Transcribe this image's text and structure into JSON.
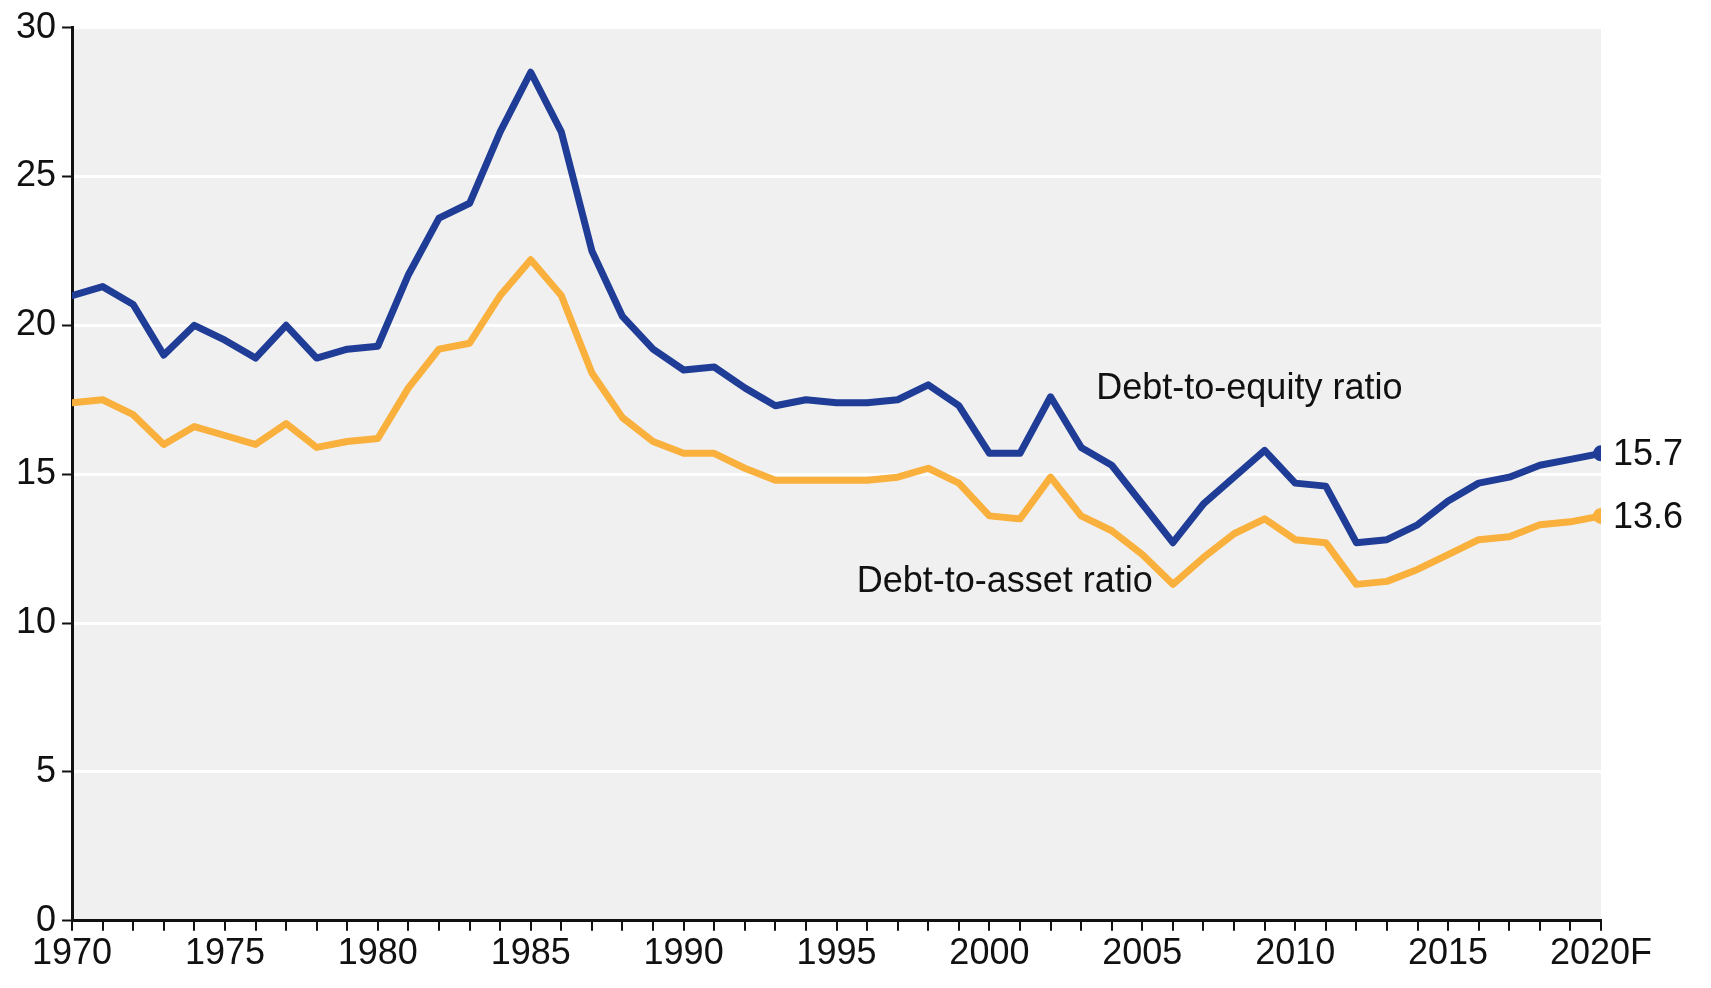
{
  "chart_data": {
    "type": "line",
    "x": [
      1970,
      1971,
      1972,
      1973,
      1974,
      1975,
      1976,
      1977,
      1978,
      1979,
      1980,
      1981,
      1982,
      1983,
      1984,
      1985,
      1986,
      1987,
      1988,
      1989,
      1990,
      1991,
      1992,
      1993,
      1994,
      1995,
      1996,
      1997,
      1998,
      1999,
      2000,
      2001,
      2002,
      2003,
      2004,
      2005,
      2006,
      2007,
      2008,
      2009,
      2010,
      2011,
      2012,
      2013,
      2014,
      2015,
      2016,
      2017,
      2018,
      2019,
      2020
    ],
    "series": [
      {
        "name": "Debt-to-equity ratio",
        "color": "#1f3c96",
        "values": [
          21.0,
          21.3,
          20.7,
          19.0,
          20.0,
          19.5,
          18.9,
          20.0,
          18.9,
          19.2,
          19.3,
          21.7,
          23.6,
          24.1,
          26.5,
          28.5,
          26.5,
          22.5,
          20.3,
          19.2,
          18.5,
          18.6,
          17.9,
          17.3,
          17.5,
          17.4,
          17.4,
          17.5,
          18.0,
          17.3,
          15.7,
          15.7,
          17.6,
          15.9,
          15.3,
          14.0,
          12.7,
          14.0,
          14.9,
          15.8,
          14.7,
          14.6,
          12.7,
          12.8,
          13.3,
          14.1,
          14.7,
          14.9,
          15.3,
          15.5,
          15.7
        ],
        "value_labels": [
          null,
          null,
          null,
          null,
          null,
          null,
          null,
          null,
          null,
          null,
          null,
          null,
          null,
          null,
          null,
          null,
          null,
          null,
          null,
          null,
          null,
          null,
          null,
          null,
          null,
          null,
          null,
          null,
          null,
          null,
          null,
          null,
          null,
          null,
          null,
          null,
          null,
          null,
          null,
          null,
          null,
          null,
          null,
          null,
          null,
          null,
          null,
          null,
          null,
          null,
          "15.7"
        ]
      },
      {
        "name": "Debt-to-asset ratio",
        "color": "#f9b03c",
        "values": [
          17.4,
          17.5,
          17.0,
          16.0,
          16.6,
          16.3,
          16.0,
          16.7,
          15.9,
          16.1,
          16.2,
          17.9,
          19.2,
          19.4,
          21.0,
          22.2,
          21.0,
          18.4,
          16.9,
          16.1,
          15.7,
          15.7,
          15.2,
          14.8,
          14.8,
          14.8,
          14.8,
          14.9,
          15.2,
          14.7,
          13.6,
          13.5,
          14.9,
          13.6,
          13.1,
          12.3,
          11.3,
          12.2,
          13.0,
          13.5,
          12.8,
          12.7,
          11.3,
          11.4,
          11.8,
          12.3,
          12.8,
          12.9,
          13.3,
          13.4,
          13.6
        ],
        "value_labels": [
          null,
          null,
          null,
          null,
          null,
          null,
          null,
          null,
          null,
          null,
          null,
          null,
          null,
          null,
          null,
          null,
          null,
          null,
          null,
          null,
          null,
          null,
          null,
          null,
          null,
          null,
          null,
          null,
          null,
          null,
          null,
          null,
          null,
          null,
          null,
          null,
          null,
          null,
          null,
          null,
          null,
          null,
          null,
          null,
          null,
          null,
          null,
          null,
          null,
          null,
          "13.6"
        ]
      }
    ],
    "xlim": [
      1970,
      2020
    ],
    "xticks": [
      1970,
      {
        "value": 1971,
        "label": null
      },
      {
        "value": 1972,
        "label": null
      },
      {
        "value": 1973,
        "label": null
      },
      {
        "value": 1974,
        "label": null
      },
      1975,
      {
        "value": 1976,
        "label": null
      },
      {
        "value": 1977,
        "label": null
      },
      {
        "value": 1978,
        "label": null
      },
      {
        "value": 1979,
        "label": null
      },
      1980,
      {
        "value": 1981,
        "label": null
      },
      {
        "value": 1982,
        "label": null
      },
      {
        "value": 1983,
        "label": null
      },
      {
        "value": 1984,
        "label": null
      },
      1985,
      {
        "value": 1986,
        "label": null
      },
      {
        "value": 1987,
        "label": null
      },
      {
        "value": 1988,
        "label": null
      },
      {
        "value": 1989,
        "label": null
      },
      1990,
      {
        "value": 1991,
        "label": null
      },
      {
        "value": 1992,
        "label": null
      },
      {
        "value": 1993,
        "label": null
      },
      {
        "value": 1994,
        "label": null
      },
      1995,
      {
        "value": 1996,
        "label": null
      },
      {
        "value": 1997,
        "label": null
      },
      {
        "value": 1998,
        "label": null
      },
      {
        "value": 1999,
        "label": null
      },
      2000,
      {
        "value": 2001,
        "label": null
      },
      {
        "value": 2002,
        "label": null
      },
      {
        "value": 2003,
        "label": null
      },
      {
        "value": 2004,
        "label": null
      },
      2005,
      {
        "value": 2006,
        "label": null
      },
      {
        "value": 2007,
        "label": null
      },
      {
        "value": 2008,
        "label": null
      },
      {
        "value": 2009,
        "label": null
      },
      2010,
      {
        "value": 2011,
        "label": null
      },
      {
        "value": 2012,
        "label": null
      },
      {
        "value": 2013,
        "label": null
      },
      {
        "value": 2014,
        "label": null
      },
      2015,
      {
        "value": 2016,
        "label": null
      },
      {
        "value": 2017,
        "label": null
      },
      {
        "value": 2018,
        "label": null
      },
      {
        "value": 2019,
        "label": null
      },
      {
        "value": 2020,
        "label": "2020F"
      }
    ],
    "ylim": [
      0,
      30
    ],
    "yticks": [
      0,
      5,
      10,
      15,
      20,
      25,
      30
    ],
    "grid": "y",
    "legend": false,
    "line_style": "solid"
  }
}
